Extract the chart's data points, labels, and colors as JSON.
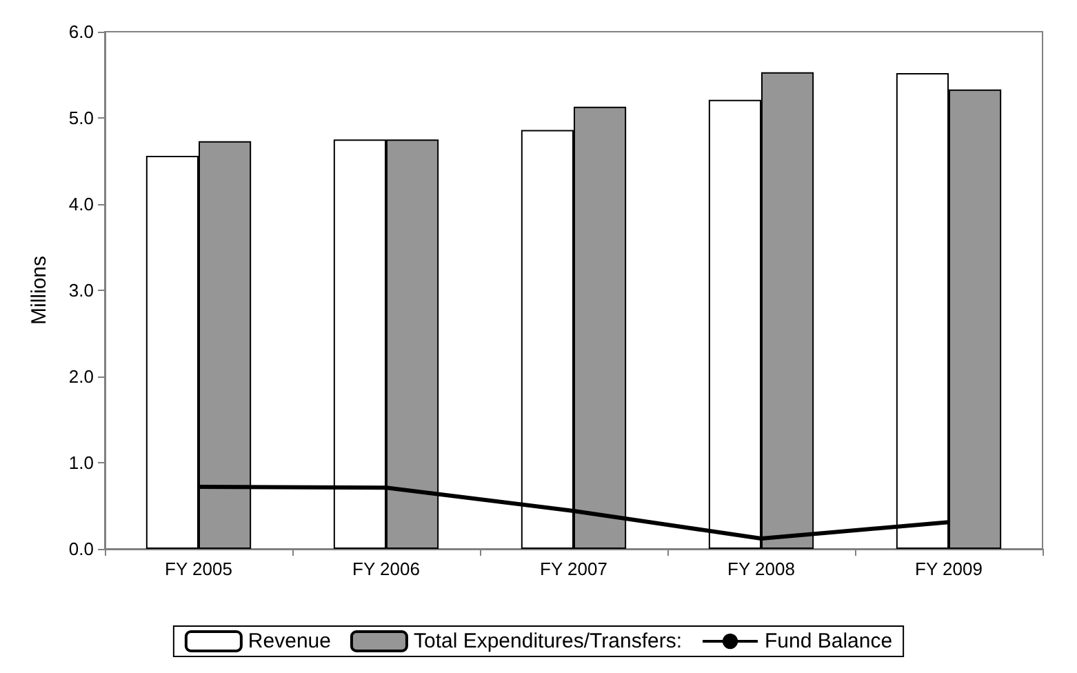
{
  "chart_data": {
    "type": "bar",
    "ylabel": "Millions",
    "categories": [
      "FY 2005",
      "FY 2006",
      "FY 2007",
      "FY 2008",
      "FY 2009"
    ],
    "series": [
      {
        "name": "Revenue",
        "color": "#ffffff",
        "values": [
          4.56,
          4.75,
          4.86,
          5.21,
          5.52
        ]
      },
      {
        "name": "Total Expenditures/Transfers:",
        "color": "#969696",
        "values": [
          4.73,
          4.75,
          5.13,
          5.53,
          5.33
        ]
      },
      {
        "name": "Fund Balance",
        "type": "line",
        "color": "#000000",
        "values": [
          0.72,
          0.71,
          0.44,
          0.12,
          0.31
        ]
      }
    ],
    "ylim": [
      0,
      6
    ],
    "yticks": [
      {
        "value": 0,
        "label": "0.0"
      },
      {
        "value": 1,
        "label": "1.0"
      },
      {
        "value": 2,
        "label": "2.0"
      },
      {
        "value": 3,
        "label": "3.0"
      },
      {
        "value": 4,
        "label": "4.0"
      },
      {
        "value": 5,
        "label": "5.0"
      },
      {
        "value": 6,
        "label": "6.0"
      }
    ],
    "grid": false,
    "legend": "bottom",
    "marker": "none"
  }
}
